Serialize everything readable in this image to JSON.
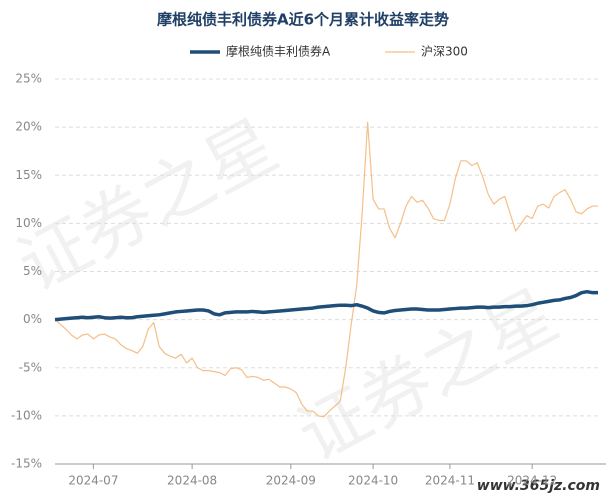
{
  "chart_data": {
    "type": "line",
    "title": "摩根纯债丰利债券A近6个月累计收益率走势",
    "watermark": "证券之星",
    "source": "www.365jz.com",
    "categories": [
      null,
      null,
      null,
      null,
      null,
      null,
      null,
      "2024-07",
      null,
      null,
      null,
      null,
      null,
      null,
      null,
      null,
      null,
      null,
      null,
      null,
      null,
      null,
      null,
      null,
      null,
      "2024-08",
      null,
      null,
      null,
      null,
      null,
      null,
      null,
      null,
      null,
      null,
      null,
      null,
      null,
      null,
      null,
      null,
      null,
      "2024-09",
      null,
      null,
      null,
      null,
      null,
      null,
      null,
      null,
      null,
      null,
      null,
      null,
      null,
      null,
      "2024-10",
      null,
      null,
      null,
      null,
      null,
      null,
      null,
      null,
      null,
      null,
      null,
      null,
      null,
      "2024-11",
      null,
      null,
      null,
      null,
      null,
      null,
      null,
      null,
      null,
      null,
      null,
      null,
      null,
      null,
      "2024-12",
      null,
      null,
      null,
      null,
      null,
      null,
      null,
      null,
      null,
      null,
      null,
      null
    ],
    "series": [
      {
        "name": "摩根纯债丰利债券A",
        "color": "#1f4e79",
        "values": [
          0,
          0.05,
          0.1,
          0.15,
          0.2,
          0.25,
          0.2,
          0.25,
          0.3,
          0.2,
          0.15,
          0.2,
          0.25,
          0.2,
          0.2,
          0.3,
          0.35,
          0.4,
          0.45,
          0.5,
          0.6,
          0.7,
          0.8,
          0.85,
          0.9,
          0.95,
          1.0,
          1.0,
          0.9,
          0.6,
          0.5,
          0.7,
          0.75,
          0.8,
          0.8,
          0.8,
          0.85,
          0.8,
          0.75,
          0.8,
          0.85,
          0.9,
          0.95,
          1.0,
          1.05,
          1.1,
          1.15,
          1.2,
          1.3,
          1.35,
          1.4,
          1.45,
          1.5,
          1.5,
          1.45,
          1.55,
          1.4,
          1.2,
          0.9,
          0.75,
          0.7,
          0.85,
          0.95,
          1.0,
          1.05,
          1.1,
          1.1,
          1.05,
          1.0,
          1.0,
          1.0,
          1.05,
          1.1,
          1.15,
          1.2,
          1.2,
          1.25,
          1.3,
          1.3,
          1.25,
          1.3,
          1.3,
          1.35,
          1.35,
          1.4,
          1.4,
          1.45,
          1.55,
          1.7,
          1.8,
          1.9,
          2.0,
          2.05,
          2.2,
          2.3,
          2.5,
          2.8,
          2.9,
          2.8,
          2.8
        ]
      },
      {
        "name": "沪深300",
        "color": "#f5bf88",
        "values": [
          0,
          -0.5,
          -1,
          -1.6,
          -2,
          -1.6,
          -1.5,
          -2,
          -1.6,
          -1.5,
          -1.8,
          -2,
          -2.6,
          -3,
          -3.2,
          -3.5,
          -2.8,
          -1,
          -0.3,
          -2.8,
          -3.5,
          -3.8,
          -4,
          -3.6,
          -4.5,
          -4,
          -5,
          -5.3,
          -5.3,
          -5.4,
          -5.5,
          -5.8,
          -5.1,
          -5,
          -5.2,
          -6,
          -5.9,
          -6,
          -6.3,
          -6.2,
          -6.6,
          -7,
          -7,
          -7.2,
          -7.6,
          -8.8,
          -9.5,
          -9.5,
          -10,
          -10.1,
          -9.5,
          -9,
          -8.5,
          -5,
          -0.5,
          3.5,
          11,
          20.5,
          12.5,
          11.5,
          11.5,
          9.5,
          8.5,
          10,
          11.8,
          12.8,
          12.2,
          12.4,
          11.6,
          10.5,
          10.3,
          10.3,
          12,
          14.7,
          16.5,
          16.5,
          16,
          16.3,
          14.8,
          13,
          12,
          12.5,
          12.8,
          11,
          9.2,
          10,
          10.8,
          10.5,
          11.8,
          12,
          11.6,
          12.8,
          13.2,
          13.5,
          12.5,
          11.2,
          11,
          11.5,
          11.8,
          11.8
        ]
      }
    ],
    "ylim": [
      -15,
      25
    ],
    "yticks": [
      {
        "value": -15,
        "label": "-15%"
      },
      {
        "value": -10,
        "label": "-10%"
      },
      {
        "value": -5,
        "label": "-5%"
      },
      {
        "value": 0,
        "label": "0%"
      },
      {
        "value": 5,
        "label": "5%"
      },
      {
        "value": 10,
        "label": "10%"
      },
      {
        "value": 15,
        "label": "15%"
      },
      {
        "value": 20,
        "label": "20%"
      },
      {
        "value": 25,
        "label": "25%"
      }
    ],
    "grid": true
  }
}
